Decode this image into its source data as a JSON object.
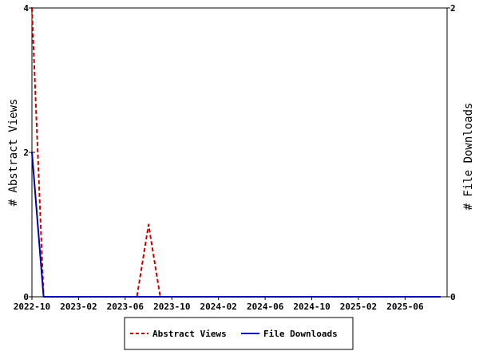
{
  "chart_data": {
    "type": "line",
    "ylabel_left": "# Abstract Views",
    "ylabel_right": "# File Downloads",
    "x_tick_labels": [
      "2022-10",
      "2023-02",
      "2023-06",
      "2023-10",
      "2024-02",
      "2024-06",
      "2024-10",
      "2025-02",
      "2025-06"
    ],
    "x_range": [
      "2022-10",
      "2025-09"
    ],
    "ylim_left": [
      0,
      4
    ],
    "ylim_right": [
      0,
      2
    ],
    "y_ticks_left": [
      0,
      2,
      4
    ],
    "y_ticks_right": [
      0,
      2
    ],
    "legend_placement": "bottom-center",
    "grid": false,
    "series": [
      {
        "name": "Abstract Views",
        "axis": "left",
        "color": "#cc0000",
        "line_style": "dashed",
        "points": [
          {
            "x": "2022-10",
            "y": 4
          },
          {
            "x": "2022-11",
            "y": 0
          },
          {
            "x": "2023-07",
            "y": 0
          },
          {
            "x": "2023-08",
            "y": 1
          },
          {
            "x": "2023-09",
            "y": 0
          },
          {
            "x": "2025-09",
            "y": 0
          }
        ]
      },
      {
        "name": "File Downloads",
        "axis": "right",
        "color": "#0000aa",
        "line_style": "solid",
        "points": [
          {
            "x": "2022-10",
            "y": 1
          },
          {
            "x": "2022-11",
            "y": 0
          },
          {
            "x": "2025-09",
            "y": 0
          }
        ]
      }
    ]
  }
}
